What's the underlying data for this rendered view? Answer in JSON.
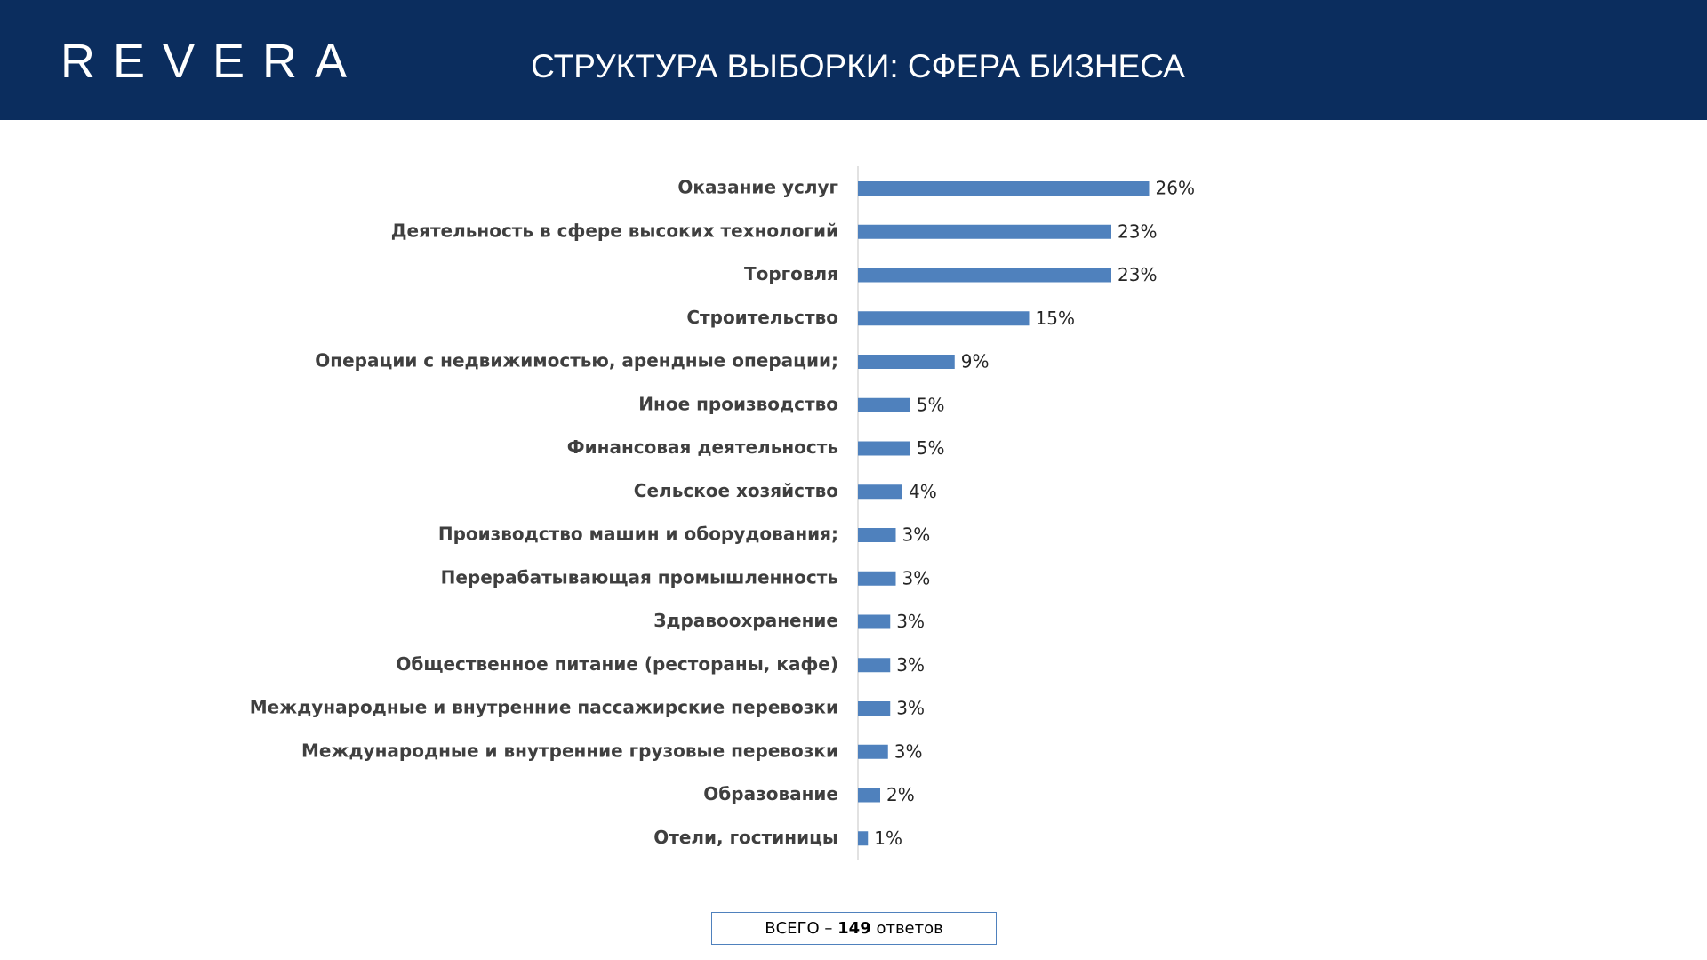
{
  "header": {
    "logo": "REVERA",
    "title": "СТРУКТУРА ВЫБОРКИ: СФЕРА БИЗНЕСА"
  },
  "chart_data": {
    "type": "bar",
    "orientation": "horizontal",
    "color": "#4f81bd",
    "categories": [
      "Оказание услуг",
      "Деятельность в сфере высоких технологий",
      "Торговля",
      "Строительство",
      "Операции с недвижимостью, арендные операции;",
      "Иное производство",
      "Финансовая деятельность",
      "Сельское хозяйство",
      "Производство машин и оборудования;",
      "Перерабатывающая промышленность",
      "Здравоохранение",
      "Общественное питание (рестораны, кафе)",
      "Международные и внутренние пассажирские перевозки",
      "Международные и внутренние грузовые перевозки",
      "Образование",
      "Отели, гостиницы"
    ],
    "values": [
      26.2,
      22.8,
      22.8,
      15.4,
      8.7,
      4.7,
      4.7,
      4.0,
      3.4,
      3.4,
      2.9,
      2.9,
      2.9,
      2.7,
      2.0,
      0.9
    ],
    "value_labels": [
      "26%",
      "23%",
      "23%",
      "15%",
      "9%",
      "5%",
      "5%",
      "4%",
      "3%",
      "3%",
      "3%",
      "3%",
      "3%",
      "3%",
      "2%",
      "1%"
    ]
  },
  "footer": {
    "prefix": "ВСЕГО –",
    "total": 149,
    "suffix": "ответов"
  }
}
